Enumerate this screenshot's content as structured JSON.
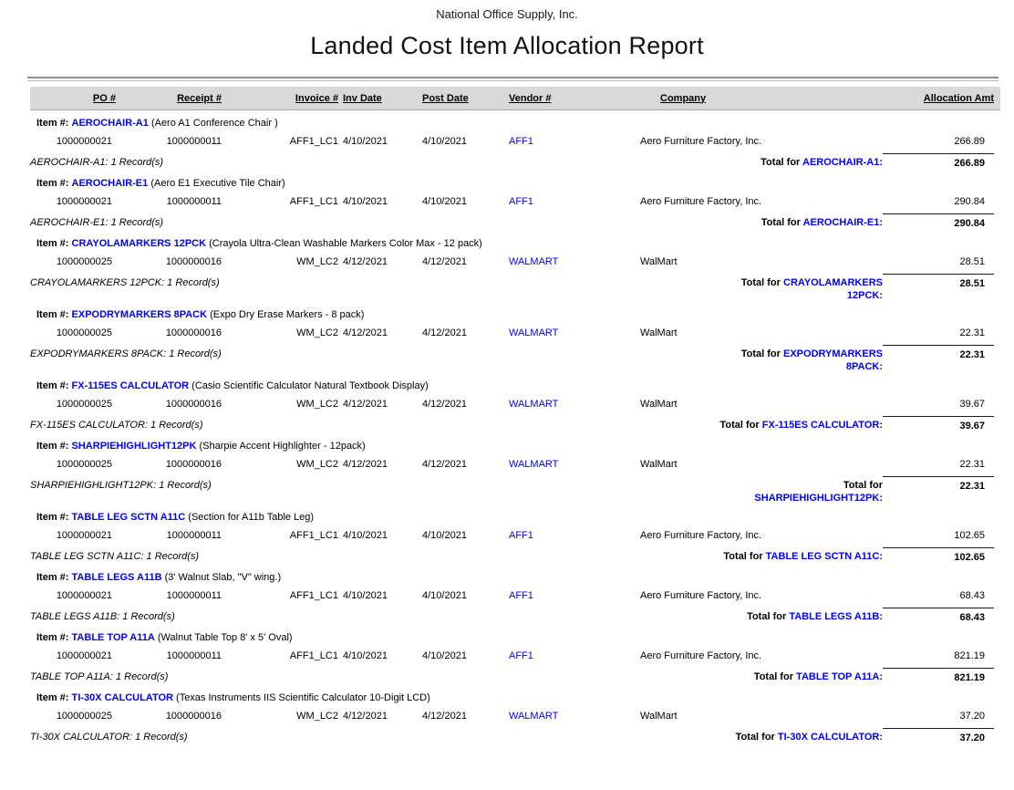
{
  "header": {
    "company": "National Office Supply, Inc.",
    "title": "Landed Cost Item Allocation Report"
  },
  "labels": {
    "item_prefix": "Item #:",
    "total_prefix": "Total for"
  },
  "colors": {
    "link_blue": "#0000FF",
    "header_bar_gray": "#D9D9D9"
  },
  "table": {
    "columns": {
      "po": "PO #",
      "receipt": "Receipt #",
      "invoice": "Invoice #",
      "inv_date": "Inv Date",
      "post_date": "Post Date",
      "vendor": "Vendor #",
      "company": "Company",
      "amount": "Allocation Amt"
    }
  },
  "sections": [
    {
      "item_code": "AEROCHAIR-A1",
      "item_desc": "(Aero A1 Conference Chair )",
      "rows": [
        {
          "po": "1000000021",
          "receipt": "1000000011",
          "invoice": "AFF1_LC1",
          "inv_date": "4/10/2021",
          "post_date": "4/10/2021",
          "vendor": "AFF1",
          "company": "Aero Furniture Factory, Inc.",
          "amount": "266.89"
        }
      ],
      "record_summary": "AEROCHAIR-A1: 1 Record(s)",
      "total_code": "AEROCHAIR-A1:",
      "total_amount": "266.89"
    },
    {
      "item_code": "AEROCHAIR-E1",
      "item_desc": "(Aero E1 Executive Tile Chair)",
      "rows": [
        {
          "po": "1000000021",
          "receipt": "1000000011",
          "invoice": "AFF1_LC1",
          "inv_date": "4/10/2021",
          "post_date": "4/10/2021",
          "vendor": "AFF1",
          "company": "Aero Furniture Factory, Inc.",
          "amount": "290.84"
        }
      ],
      "record_summary": "AEROCHAIR-E1: 1 Record(s)",
      "total_code": "AEROCHAIR-E1:",
      "total_amount": "290.84"
    },
    {
      "item_code": "CRAYOLAMARKERS 12PCK",
      "item_desc": "(Crayola Ultra-Clean Washable Markers Color Max - 12 pack)",
      "rows": [
        {
          "po": "1000000025",
          "receipt": "1000000016",
          "invoice": "WM_LC2",
          "inv_date": "4/12/2021",
          "post_date": "4/12/2021",
          "vendor": "WALMART",
          "company": "WalMart",
          "amount": "28.51"
        }
      ],
      "record_summary": "CRAYOLAMARKERS 12PCK: 1 Record(s)",
      "total_code": "CRAYOLAMARKERS 12PCK:",
      "total_amount": "28.51"
    },
    {
      "item_code": "EXPODRYMARKERS 8PACK",
      "item_desc": "(Expo Dry Erase Markers - 8 pack)",
      "rows": [
        {
          "po": "1000000025",
          "receipt": "1000000016",
          "invoice": "WM_LC2",
          "inv_date": "4/12/2021",
          "post_date": "4/12/2021",
          "vendor": "WALMART",
          "company": "WalMart",
          "amount": "22.31"
        }
      ],
      "record_summary": "EXPODRYMARKERS 8PACK: 1 Record(s)",
      "total_code": "EXPODRYMARKERS 8PACK:",
      "total_amount": "22.31"
    },
    {
      "item_code": "FX-115ES CALCULATOR",
      "item_desc": "(Casio Scientific Calculator Natural Textbook Display)",
      "rows": [
        {
          "po": "1000000025",
          "receipt": "1000000016",
          "invoice": "WM_LC2",
          "inv_date": "4/12/2021",
          "post_date": "4/12/2021",
          "vendor": "WALMART",
          "company": "WalMart",
          "amount": "39.67"
        }
      ],
      "record_summary": "FX-115ES CALCULATOR: 1 Record(s)",
      "total_code": "FX-115ES CALCULATOR:",
      "total_amount": "39.67"
    },
    {
      "item_code": "SHARPIEHIGHLIGHT12PK",
      "item_desc": "(Sharpie Accent Highlighter - 12pack)",
      "rows": [
        {
          "po": "1000000025",
          "receipt": "1000000016",
          "invoice": "WM_LC2",
          "inv_date": "4/12/2021",
          "post_date": "4/12/2021",
          "vendor": "WALMART",
          "company": "WalMart",
          "amount": "22.31"
        }
      ],
      "record_summary": "SHARPIEHIGHLIGHT12PK: 1 Record(s)",
      "total_code": "SHARPIEHIGHLIGHT12PK:",
      "total_amount": "22.31"
    },
    {
      "item_code": "TABLE LEG SCTN A11C",
      "item_desc": "(Section for A11b Table Leg)",
      "rows": [
        {
          "po": "1000000021",
          "receipt": "1000000011",
          "invoice": "AFF1_LC1",
          "inv_date": "4/10/2021",
          "post_date": "4/10/2021",
          "vendor": "AFF1",
          "company": "Aero Furniture Factory, Inc.",
          "amount": "102.65"
        }
      ],
      "record_summary": "TABLE LEG SCTN A11C: 1 Record(s)",
      "total_code": "TABLE LEG SCTN A11C:",
      "total_amount": "102.65"
    },
    {
      "item_code": "TABLE LEGS A11B",
      "item_desc": "(3' Walnut Slab, \"V\" wing.)",
      "rows": [
        {
          "po": "1000000021",
          "receipt": "1000000011",
          "invoice": "AFF1_LC1",
          "inv_date": "4/10/2021",
          "post_date": "4/10/2021",
          "vendor": "AFF1",
          "company": "Aero Furniture Factory, Inc.",
          "amount": "68.43"
        }
      ],
      "record_summary": "TABLE LEGS A11B: 1 Record(s)",
      "total_code": "TABLE LEGS A11B:",
      "total_amount": "68.43"
    },
    {
      "item_code": "TABLE TOP A11A",
      "item_desc": "(Walnut Table Top 8' x 5' Oval)",
      "rows": [
        {
          "po": "1000000021",
          "receipt": "1000000011",
          "invoice": "AFF1_LC1",
          "inv_date": "4/10/2021",
          "post_date": "4/10/2021",
          "vendor": "AFF1",
          "company": "Aero Furniture Factory, Inc.",
          "amount": "821.19"
        }
      ],
      "record_summary": "TABLE TOP A11A: 1 Record(s)",
      "total_code": "TABLE TOP A11A:",
      "total_amount": "821.19"
    },
    {
      "item_code": "TI-30X CALCULATOR",
      "item_desc": "(Texas Instruments IIS Scientific Calculator 10-Digit LCD)",
      "rows": [
        {
          "po": "1000000025",
          "receipt": "1000000016",
          "invoice": "WM_LC2",
          "inv_date": "4/12/2021",
          "post_date": "4/12/2021",
          "vendor": "WALMART",
          "company": "WalMart",
          "amount": "37.20"
        }
      ],
      "record_summary": "TI-30X CALCULATOR: 1 Record(s)",
      "total_code": "TI-30X CALCULATOR:",
      "total_amount": "37.20"
    }
  ]
}
